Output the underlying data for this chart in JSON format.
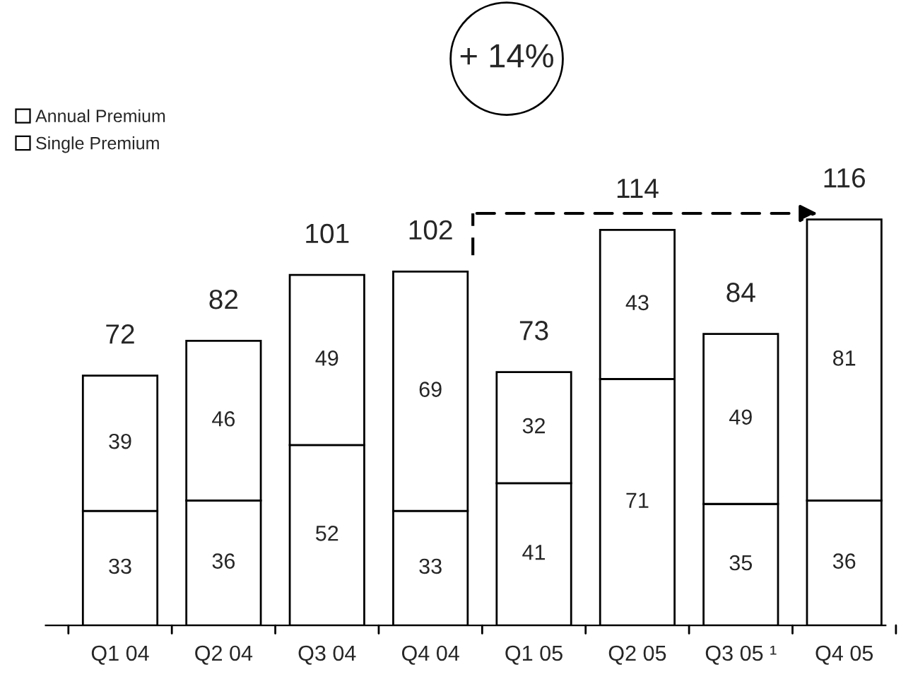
{
  "chart_data": {
    "type": "bar",
    "stacked": true,
    "categories": [
      "Q1 04",
      "Q2 04",
      "Q3 04",
      "Q4 04",
      "Q1 05",
      "Q2 05",
      "Q3 05 ¹",
      "Q4 05"
    ],
    "series": [
      {
        "name": "Annual Premium",
        "color": "#ffffff",
        "values": [
          33,
          36,
          52,
          33,
          41,
          71,
          35,
          36
        ]
      },
      {
        "name": "Single Premium",
        "color": "#ffffff",
        "values": [
          39,
          46,
          49,
          69,
          32,
          43,
          49,
          81
        ]
      }
    ],
    "data_labels": true,
    "totals": [
      "72",
      "82",
      "101",
      "102",
      "73",
      "114",
      "84",
      "116"
    ],
    "annotations": [
      "+ 14%"
    ],
    "legend": "top left",
    "grid": false
  }
}
